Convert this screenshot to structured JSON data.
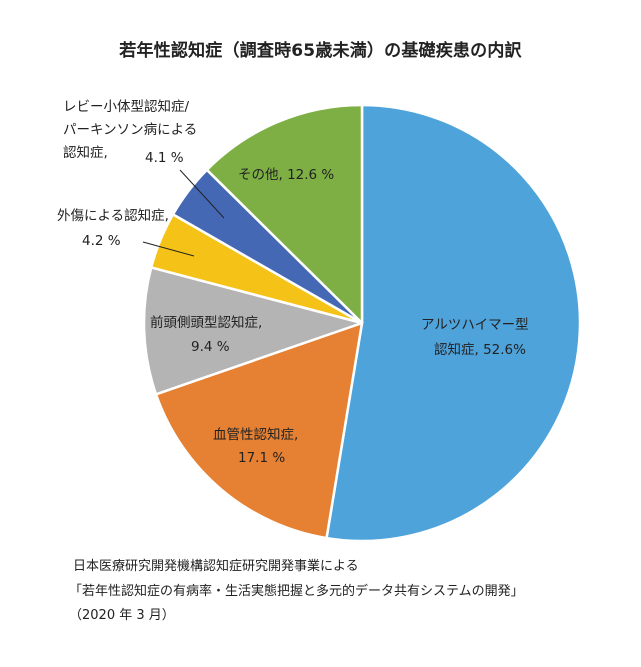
{
  "title": "若年性認知症（調査時65歳未満）の基礎疾患の内訳",
  "chart_data": {
    "type": "pie",
    "title": "若年性認知症（調査時65歳未満）の基礎疾患の内訳",
    "start_angle_deg": 0,
    "direction": "clockwise",
    "slices": [
      {
        "name": "アルツハイマー型認知症",
        "value": 52.6,
        "color": "#4FA3DB"
      },
      {
        "name": "血管性認知症",
        "value": 17.1,
        "color": "#E68133"
      },
      {
        "name": "前頭側頭型認知症",
        "value": 9.4,
        "color": "#B4B4B4"
      },
      {
        "name": "外傷による認知症",
        "value": 4.2,
        "color": "#F5C218"
      },
      {
        "name": "レビー小体型認知症/パーキンソン病による認知症",
        "value": 4.1,
        "color": "#4468B4"
      },
      {
        "name": "その他",
        "value": 12.6,
        "color": "#7DAF45"
      }
    ]
  },
  "labels": {
    "alzheimer_line1": "アルツハイマー型",
    "alzheimer_line2": "認知症, 52.6%",
    "vascular_line1": "血管性認知症,",
    "vascular_line2": "17.1 %",
    "ftd_line1": "前頭側頭型認知症,",
    "ftd_line2": "9.4 %",
    "trauma_line1": "外傷による認知症,",
    "trauma_line2": "4.2 %",
    "lewy_line1": "レビー小体型認知症/",
    "lewy_line2": "パーキンソン病による",
    "lewy_line3": "認知症,",
    "lewy_pct": "4.1 %",
    "other": "その他, 12.6 %"
  },
  "source": {
    "line1": "日本医療研究開発機構認知症研究開発事業による",
    "line2": "「若年性認知症の有病率・生活実態把握と多元的データ共有システムの開発」",
    "line3": "（2020 年 3 月）"
  }
}
